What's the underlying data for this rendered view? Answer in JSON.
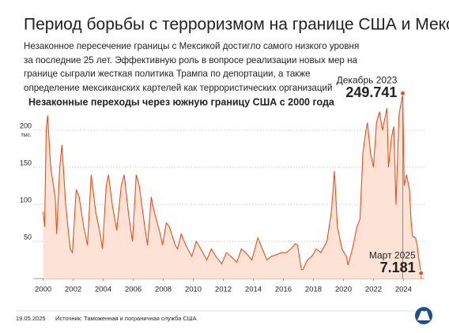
{
  "chart_data": {
    "type": "area-line",
    "title": "Период борьбы с терроризмом на границе США и Мексики",
    "subtitle": "Незаконное пересечение границы с Мексикой достигло самого низкого уровня за последние 25 лет. Эффективную роль в вопросе реализации новых мер на границе сыграли жесткая политика Трампа по депортации, а также определение мексиканских картелей как террористических организаций",
    "chart_subtitle": "Незаконные переходы через южную границу США с 2000 года",
    "y_unit": "тыс.",
    "date": "19.05.2025",
    "source": "Источник: Таможенная и пограничная служба США",
    "annotations": [
      "Декабрь 2023",
      "Март 2025"
    ],
    "color": "#e8501a",
    "fill": "#fde2d6",
    "xlim": [
      1999.6,
      2025.4
    ],
    "xticks": [
      2000,
      2002,
      2004,
      2006,
      2008,
      2010,
      2012,
      2014,
      2016,
      2018,
      2020,
      2022,
      2024
    ],
    "ylim": [
      0,
      250
    ],
    "yticks": [
      50,
      100,
      150,
      200
    ],
    "grid": true,
    "x": [
      2000.0,
      2000.1,
      2000.2,
      2000.3,
      2000.5,
      2000.8,
      2000.9,
      2001.1,
      2001.25,
      2001.5,
      2001.8,
      2001.95,
      2002.2,
      2002.4,
      2002.7,
      2002.95,
      2003.2,
      2003.5,
      2003.8,
      2003.95,
      2004.2,
      2004.35,
      2004.6,
      2004.9,
      2005.2,
      2005.4,
      2005.7,
      2005.95,
      2006.2,
      2006.4,
      2006.7,
      2006.95,
      2007.2,
      2007.4,
      2007.8,
      2007.95,
      2008.2,
      2008.4,
      2008.8,
      2008.95,
      2009.2,
      2009.5,
      2009.9,
      2010.2,
      2010.5,
      2010.9,
      2011.2,
      2011.5,
      2011.9,
      2012.2,
      2012.5,
      2012.9,
      2013.2,
      2013.5,
      2013.9,
      2014.3,
      2014.5,
      2014.9,
      2015.2,
      2015.5,
      2015.9,
      2016.2,
      2016.5,
      2016.8,
      2016.95,
      2017.2,
      2017.3,
      2017.6,
      2017.9,
      2018.2,
      2018.5,
      2018.9,
      2019.2,
      2019.4,
      2019.6,
      2019.9,
      2020.2,
      2020.3,
      2020.6,
      2020.9,
      2021.1,
      2021.3,
      2021.5,
      2021.6,
      2021.8,
      2022.0,
      2022.2,
      2022.4,
      2022.6,
      2022.9,
      2023.0,
      2023.2,
      2023.35,
      2023.5,
      2023.7,
      2023.95,
      2024.05,
      2024.2,
      2024.4,
      2024.5,
      2024.6,
      2024.8,
      2024.9,
      2025.0,
      2025.17
    ],
    "values": [
      90,
      70,
      200,
      220,
      150,
      110,
      60,
      150,
      180,
      100,
      40,
      35,
      120,
      110,
      70,
      45,
      140,
      90,
      60,
      40,
      125,
      140,
      100,
      65,
      125,
      140,
      85,
      50,
      140,
      125,
      80,
      45,
      110,
      90,
      60,
      45,
      75,
      70,
      45,
      40,
      60,
      45,
      30,
      50,
      40,
      25,
      40,
      30,
      20,
      35,
      30,
      22,
      40,
      35,
      25,
      55,
      45,
      25,
      30,
      32,
      35,
      35,
      40,
      47,
      45,
      12,
      12,
      25,
      30,
      40,
      35,
      50,
      90,
      145,
      70,
      40,
      30,
      18,
      40,
      70,
      80,
      170,
      200,
      210,
      170,
      150,
      210,
      225,
      200,
      230,
      150,
      190,
      205,
      100,
      220,
      249.741,
      125,
      140,
      120,
      80,
      57,
      55,
      47,
      30,
      7.181
    ]
  }
}
